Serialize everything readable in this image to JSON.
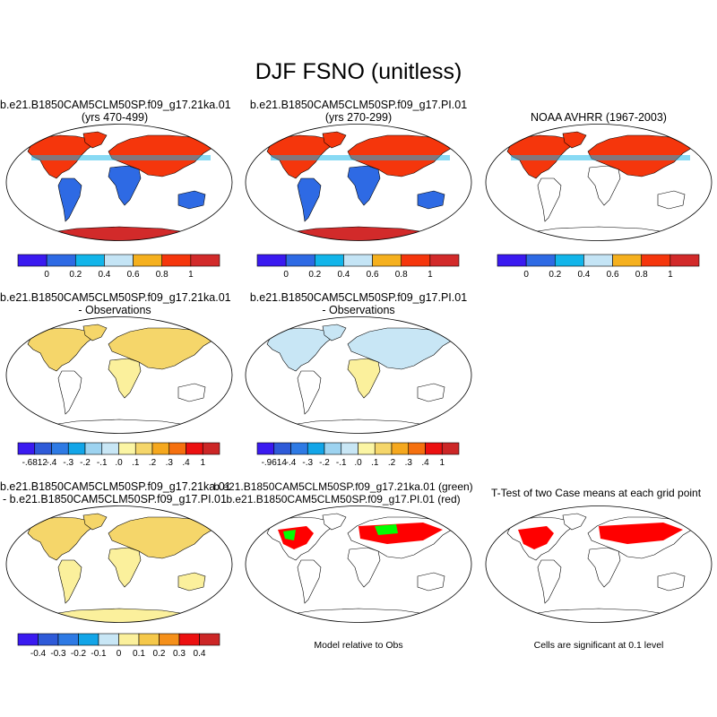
{
  "title": "DJF FSNO (unitless)",
  "panels": [
    {
      "id": "p1",
      "line1": "b.e21.B1850CAM5CLM50SP.f09_g17.21ka.01",
      "line2": "(yrs 470-499)",
      "variant": "case21ka"
    },
    {
      "id": "p2",
      "line1": "b.e21.B1850CAM5CLM50SP.f09_g17.PI.01",
      "line2": "(yrs 270-299)",
      "variant": "casePI"
    },
    {
      "id": "p3",
      "line1": "NOAA AVHRR (1967-2003)",
      "line2": "",
      "variant": "obs"
    },
    {
      "id": "p4",
      "line1": "b.e21.B1850CAM5CLM50SP.f09_g17.21ka.01",
      "line2": "- Observations",
      "variant": "diff21ka"
    },
    {
      "id": "p5",
      "line1": "b.e21.B1850CAM5CLM50SP.f09_g17.PI.01",
      "line2": "- Observations",
      "variant": "diffPI"
    },
    {
      "id": "p7",
      "line1": "b.e21.B1850CAM5CLM50SP.f09_g17.21ka.01",
      "line2": "- b.e21.B1850CAM5CLM50SP.f09_g17.PI.01",
      "variant": "casediff"
    },
    {
      "id": "p8",
      "line1": "b.e21.B1850CAM5CLM50SP.f09_g17.21ka.01 (green)",
      "line2": "b.e21.B1850CAM5CLM50SP.f09_g17.PI.01 (red)",
      "variant": "relobs"
    },
    {
      "id": "p9",
      "line1": "T-Test of two Case means at each grid point",
      "line2": "",
      "variant": "ttest"
    }
  ],
  "notes": {
    "relobs": "Model relative to Obs",
    "ttest": "Cells are significant at 0.1 level"
  },
  "colors": {
    "palette_main": [
      "#3a1af0",
      "#2e6ae4",
      "#12b5ea",
      "#c4e4f5",
      "#f5b01e",
      "#f5360c",
      "#d22a2a"
    ],
    "palette_diff": [
      "#3a1af0",
      "#2e5ad8",
      "#2e7ae4",
      "#12a5e8",
      "#9dd3f0",
      "#c8e6f5",
      "#fbf5a4",
      "#f5d66a",
      "#f5a81e",
      "#f5700f",
      "#ec1010",
      "#cc2626"
    ],
    "palette_casediff": [
      "#3a1af0",
      "#2e5ad8",
      "#2e7ae4",
      "#12a5e8",
      "#c8e6f5",
      "#fbf09c",
      "#f5c84a",
      "#f5901a",
      "#ec1010",
      "#cc2626"
    ],
    "land_low": "#2e6ae4",
    "land_high": "#f5360c",
    "antarctica": "#d22a2a",
    "sig_red": "#ff0000",
    "sig_green": "#00ff00"
  },
  "chart_data": [
    {
      "type": "heatmap",
      "panel": "p1",
      "colorbar_ticks": [
        "0",
        "0.2",
        "0.4",
        "0.6",
        "0.8",
        "1"
      ]
    },
    {
      "type": "heatmap",
      "panel": "p2",
      "colorbar_ticks": [
        "0",
        "0.2",
        "0.4",
        "0.6",
        "0.8",
        "1"
      ]
    },
    {
      "type": "heatmap",
      "panel": "p3",
      "colorbar_ticks": [
        "0",
        "0.2",
        "0.4",
        "0.6",
        "0.8",
        "1"
      ]
    },
    {
      "type": "heatmap",
      "panel": "p4",
      "colorbar_ticks": [
        "-.6812",
        "-.4",
        "-.3",
        "-.2",
        "-.1",
        ".0",
        ".1",
        ".2",
        ".3",
        ".4",
        "1"
      ]
    },
    {
      "type": "heatmap",
      "panel": "p5",
      "colorbar_ticks": [
        "-.9614",
        "-.4",
        "-.3",
        "-.2",
        "-.1",
        ".0",
        ".1",
        ".2",
        ".3",
        ".4",
        "1"
      ]
    },
    {
      "type": "heatmap",
      "panel": "p7",
      "colorbar_ticks": [
        "-0.4",
        "-0.3",
        "-0.2",
        "-0.1",
        "0",
        "0.1",
        "0.2",
        "0.3",
        "0.4"
      ]
    }
  ]
}
